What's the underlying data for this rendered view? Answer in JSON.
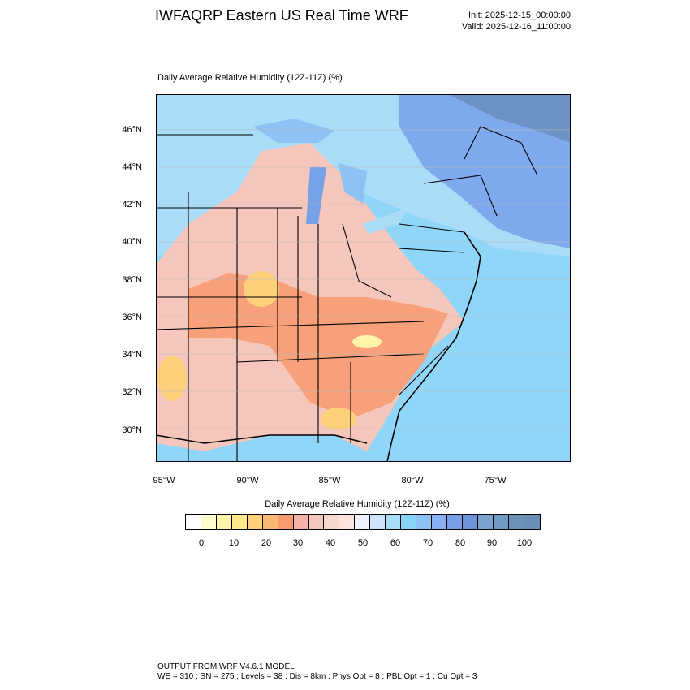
{
  "header": {
    "title": "IWFAQRP Eastern US Real Time WRF",
    "init": "Init: 2025-12-15_00:00:00",
    "valid": "Valid: 2025-12-16_11:00:00"
  },
  "plot": {
    "title": "Daily Average Relative Humidity (12Z-11Z)   (%)",
    "lat_labels": [
      "46°N",
      "44°N",
      "42°N",
      "40°N",
      "38°N",
      "36°N",
      "34°N",
      "32°N",
      "30°N"
    ],
    "lon_labels": [
      "95°W",
      "90°W",
      "85°W",
      "80°W",
      "75°W"
    ]
  },
  "colorbar": {
    "title": "Daily Average Relative Humidity (12Z-11Z)  (%)",
    "colors": [
      "#ffffff",
      "#fffccc",
      "#fff5a8",
      "#ffe98a",
      "#fdd07a",
      "#fbb873",
      "#f79b6f",
      "#f3b3a6",
      "#f5c6bc",
      "#f9d6cd",
      "#fbe4dd",
      "#eef0fc",
      "#cfe3fa",
      "#a9dcf7",
      "#86d5f7",
      "#8ec2f5",
      "#89b0f3",
      "#789ee6",
      "#6d93d8",
      "#7aa3cf",
      "#6f9bc3",
      "#6b93b8",
      "#6a8eb4"
    ],
    "ticks": [
      "0",
      "10",
      "20",
      "30",
      "40",
      "50",
      "60",
      "70",
      "80",
      "90",
      "100"
    ]
  },
  "footer": {
    "line1": "OUTPUT FROM WRF V4.6.1 MODEL",
    "line2": "WE = 310 ; SN = 275 ; Levels = 38 ; Dis = 8km ; Phys Opt = 8 ; PBL Opt = 1 ; Cu Opt = 3"
  }
}
